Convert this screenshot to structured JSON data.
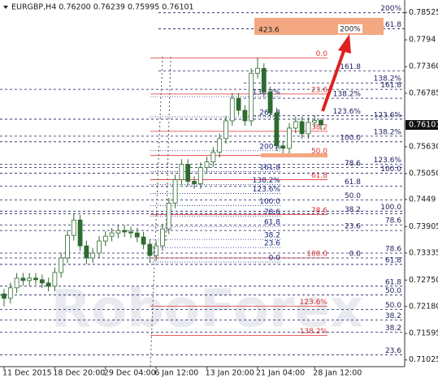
{
  "chart_data": {
    "type": "candlestick",
    "title": "EURGBP,H4  0.76200 0.76239 0.75995 0.76101",
    "watermark": "RoboForex",
    "annotations": [
      "423.6",
      "200%"
    ],
    "categories": [
      "11 Dec 2015",
      null,
      null,
      null,
      null,
      null,
      null,
      null,
      "18 Dec 20:00",
      null,
      null,
      null,
      null,
      null,
      null,
      null,
      "29 Dec 04:00",
      null,
      null,
      null,
      null,
      null,
      null,
      null,
      "6 Jan 12:00",
      null,
      null,
      null,
      null,
      null,
      null,
      null,
      "13 Jan 20:00",
      null,
      null,
      null,
      null,
      null,
      null,
      null,
      "21 Jan 04:00",
      null,
      null,
      null,
      null,
      null,
      null,
      null,
      null,
      "28 Jan 12:00",
      null
    ],
    "open": [
      0.7245,
      0.72357,
      0.72583,
      0.72792,
      0.7274,
      0.72792,
      0.72758,
      0.72688,
      0.72618,
      0.72914,
      0.73228,
      0.73716,
      0.74047,
      0.73489,
      0.73228,
      0.73333,
      0.73594,
      0.73698,
      0.73768,
      0.7382,
      0.7379,
      0.73768,
      0.73681,
      0.73524,
      0.7328,
      0.73489,
      0.73855,
      0.74413,
      0.74918,
      0.75249,
      0.74883,
      0.74831,
      0.7518,
      0.75302,
      0.75511,
      0.75807,
      0.7619,
      0.76678,
      0.76417,
      0.7619,
      0.77218,
      0.77323,
      0.76818,
      0.76364,
      0.7565,
      0.75598,
      0.76033,
      0.76173,
      0.75911,
      0.76155,
      0.762
    ],
    "high": [
      0.7256,
      0.72693,
      0.72902,
      0.72902,
      0.72902,
      0.72902,
      0.72868,
      0.72798,
      0.73024,
      0.73338,
      0.73826,
      0.7419,
      0.74157,
      0.73599,
      0.73443,
      0.73704,
      0.73808,
      0.73878,
      0.7393,
      0.7393,
      0.739,
      0.73878,
      0.73791,
      0.73634,
      0.73599,
      0.73965,
      0.74523,
      0.75028,
      0.75359,
      0.75359,
      0.74993,
      0.7529,
      0.75412,
      0.75621,
      0.75917,
      0.763,
      0.76788,
      0.76788,
      0.76527,
      0.77328,
      0.77549,
      0.77433,
      0.76928,
      0.76474,
      0.7576,
      0.76143,
      0.76283,
      0.76283,
      0.76265,
      0.7631,
      0.76239
    ],
    "low": [
      0.7218,
      0.72247,
      0.72473,
      0.7263,
      0.7263,
      0.72648,
      0.72578,
      0.72508,
      0.72508,
      0.72804,
      0.73118,
      0.73606,
      0.73379,
      0.73089,
      0.73118,
      0.73223,
      0.73484,
      0.73588,
      0.73658,
      0.7368,
      0.73658,
      0.73571,
      0.73414,
      0.7313,
      0.7317,
      0.73379,
      0.73745,
      0.74303,
      0.74808,
      0.74773,
      0.74721,
      0.74721,
      0.7507,
      0.75192,
      0.75401,
      0.75697,
      0.7608,
      0.76307,
      0.7608,
      0.7608,
      0.77108,
      0.76708,
      0.76254,
      0.7554,
      0.75441,
      0.75488,
      0.75923,
      0.75801,
      0.75801,
      0.76045,
      0.75995
    ],
    "close": [
      0.72357,
      0.72583,
      0.72792,
      0.7274,
      0.72792,
      0.72758,
      0.72688,
      0.72618,
      0.72914,
      0.73228,
      0.73716,
      0.74047,
      0.73489,
      0.73228,
      0.73333,
      0.73594,
      0.73698,
      0.73768,
      0.7382,
      0.7379,
      0.73768,
      0.73681,
      0.73524,
      0.7328,
      0.73489,
      0.73855,
      0.74413,
      0.74918,
      0.75249,
      0.74883,
      0.74831,
      0.7518,
      0.75302,
      0.75511,
      0.75807,
      0.7619,
      0.76678,
      0.76417,
      0.7619,
      0.77218,
      0.77323,
      0.76818,
      0.76364,
      0.7565,
      0.75598,
      0.76033,
      0.76173,
      0.75911,
      0.76155,
      0.762,
      0.76101
    ],
    "candle_color": "#2e6b30",
    "ylim": [
      0.7088,
      0.788
    ],
    "yticks": [
      0.78525,
      0.7794,
      {
        "value": 0.7736,
        "label": "0.77360"
      },
      0.76785,
      {
        "value": 0.7563,
        "label": "0.75630"
      },
      {
        "value": 0.7505,
        "label": "0.75050"
      },
      0.7449,
      0.73905,
      0.73335,
      {
        "value": 0.7275,
        "label": "0.72750"
      },
      {
        "value": 0.7218,
        "label": "0.72180"
      },
      0.71595,
      0.71025
    ],
    "current_price": 0.76101,
    "fib_levels": [
      {
        "value": 0.77549,
        "label": "0.0",
        "color": "#e03030"
      },
      {
        "value": 0.7677,
        "label": "23.6",
        "color": "#e03030"
      },
      {
        "value": 0.75964,
        "label": "38.2",
        "color": "#e03030"
      },
      {
        "value": 0.75441,
        "label": "50.0",
        "color": "#e03030"
      },
      {
        "value": 0.74918,
        "label": "61.8",
        "color": "#e03030"
      },
      {
        "value": 0.74169,
        "label": "78.6",
        "color": "#e03030"
      },
      {
        "value": 0.73228,
        "label": "100.0",
        "color": "#e03030"
      },
      {
        "value": 0.72183,
        "label": "123.6%",
        "color": "#e03030"
      },
      {
        "value": 0.71555,
        "label": "138.2%",
        "color": "#e03030"
      },
      {
        "value": 0.73141,
        "label": "0.0",
        "color": "#1a237e"
      },
      {
        "value": 0.73454,
        "label": "23.6",
        "color": "#1a237e"
      },
      {
        "value": 0.73629,
        "label": "38.2",
        "color": "#1a237e"
      },
      {
        "value": 0.73907,
        "label": "61.8",
        "color": "#1a237e"
      },
      {
        "value": 0.74134,
        "label": "78.6",
        "color": "#1a237e"
      },
      {
        "value": 0.74361,
        "label": "100.0",
        "color": "#1a237e"
      },
      {
        "value": 0.74622,
        "label": "123.6%",
        "color": "#1a237e"
      },
      {
        "value": 0.74814,
        "label": "138.2%",
        "color": "#1a237e"
      },
      {
        "value": 0.75093,
        "label": "161.8",
        "color": "#1a237e"
      },
      {
        "value": 0.75545,
        "label": "200%",
        "color": "#1a237e"
      },
      {
        "value": 0.76277,
        "label": "261.8",
        "color": "#1a237e"
      },
      {
        "value": 0.76713,
        "label": "138.2%",
        "color": "#1a237e"
      },
      {
        "value": 0.78525,
        "label": "200%",
        "color": "#1a1a5e"
      },
      {
        "value": 0.78177,
        "label": "161.8",
        "color": "#1a1a5e"
      },
      {
        "value": 0.77271,
        "label": "161.8",
        "color": "#1a1a5e"
      },
      {
        "value": 0.77009,
        "label": "138.2%",
        "color": "#1a1a5e"
      },
      {
        "value": 0.7687,
        "label": "161.8",
        "color": "#1a1a5e"
      },
      {
        "value": 0.76678,
        "label": "138.2%",
        "color": "#1a1a5e"
      },
      {
        "value": 0.763,
        "label": "123.6%",
        "color": "#1a1a5e"
      },
      {
        "value": 0.76225,
        "label": "123.6%",
        "color": "#1a1a5e"
      },
      {
        "value": 0.75859,
        "label": "138.2%",
        "color": "#1a1a5e"
      },
      {
        "value": 0.75737,
        "label": "100.0",
        "color": "#1a1a5e"
      },
      {
        "value": 0.75249,
        "label": "123.6%",
        "color": "#1a1a5e"
      },
      {
        "value": 0.7518,
        "label": "78.6",
        "color": "#1a1a5e"
      },
      {
        "value": 0.75058,
        "label": "100.0",
        "color": "#1a1a5e"
      },
      {
        "value": 0.74779,
        "label": "61.8",
        "color": "#1a1a5e"
      },
      {
        "value": 0.74483,
        "label": "50.0",
        "color": "#1a1a5e"
      },
      {
        "value": 0.74239,
        "label": "100.0",
        "color": "#1a1a5e"
      },
      {
        "value": 0.74186,
        "label": "38.2",
        "color": "#1a1a5e"
      },
      {
        "value": 0.73942,
        "label": "78.6",
        "color": "#1a1a5e"
      },
      {
        "value": 0.73821,
        "label": "23.6",
        "color": "#1a1a5e"
      },
      {
        "value": 0.73333,
        "label": "78.6",
        "color": "#1a1a5e"
      },
      {
        "value": 0.73228,
        "label": "0.0",
        "color": "#1a1a5e"
      },
      {
        "value": 0.73089,
        "label": "61.8",
        "color": "#1a1a5e"
      },
      {
        "value": 0.72618,
        "label": "61.8",
        "color": "#1a1a5e"
      },
      {
        "value": 0.72427,
        "label": "50.0",
        "color": "#1a1a5e"
      },
      {
        "value": 0.72113,
        "label": "50.0",
        "color": "#1a1a5e"
      },
      {
        "value": 0.71887,
        "label": "38.2",
        "color": "#1a1a5e"
      },
      {
        "value": 0.71625,
        "label": "38.2",
        "color": "#1a1a5e"
      },
      {
        "value": 0.71137,
        "label": "23.6",
        "color": "#1a1a5e"
      }
    ]
  }
}
